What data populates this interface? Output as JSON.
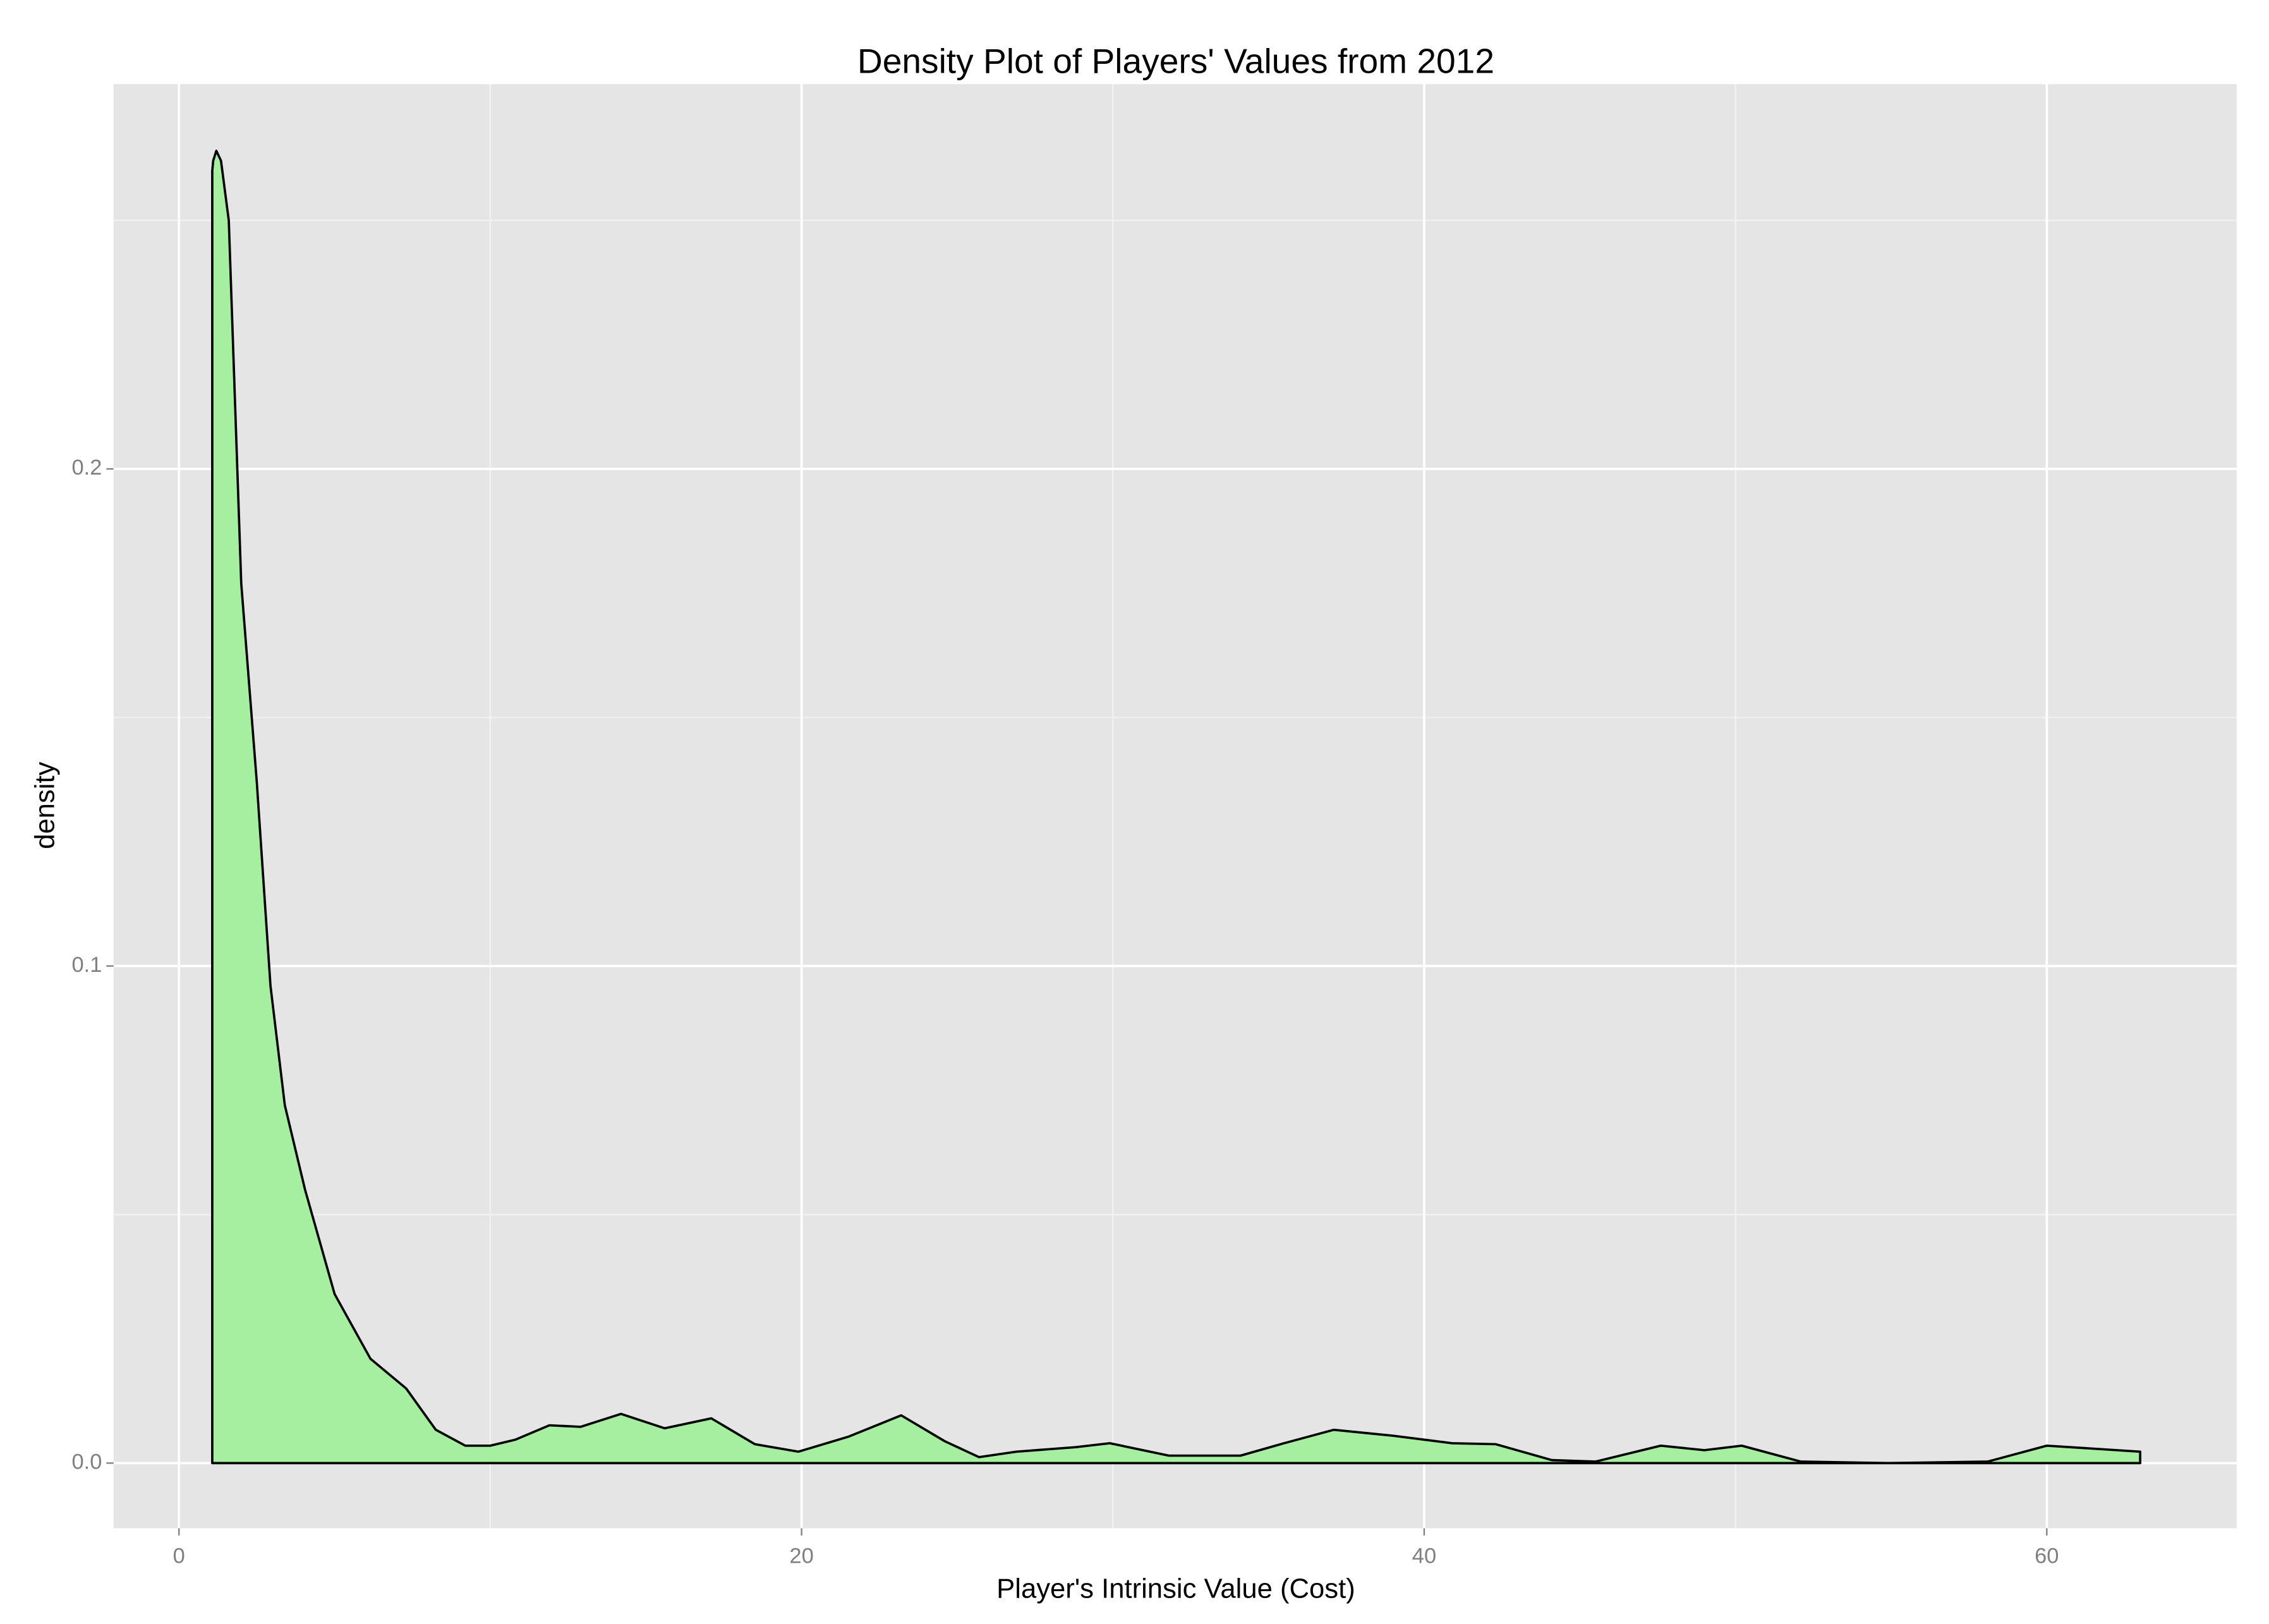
{
  "chart_data": {
    "type": "area",
    "title": "Density Plot of Players' Values from 2012",
    "x_label": "Player's Intrinsic Value (Cost)",
    "y_label": "density",
    "x": [
      1.07,
      1.1,
      1.2,
      1.35,
      1.6,
      2.0,
      2.5,
      2.94,
      3.4,
      4.05,
      5.0,
      6.15,
      7.3,
      8.25,
      9.2,
      10.0,
      10.8,
      11.9,
      12.9,
      14.2,
      15.6,
      17.1,
      18.5,
      19.9,
      21.5,
      23.2,
      24.6,
      25.7,
      26.9,
      28.8,
      29.9,
      31.8,
      34.1,
      35.5,
      37.1,
      39.0,
      40.9,
      42.3,
      44.1,
      45.5,
      47.6,
      49.0,
      50.2,
      52.1,
      54.9,
      58.1,
      60.0,
      63.0
    ],
    "values": [
      0.26,
      0.262,
      0.264,
      0.262,
      0.25,
      0.177,
      0.137,
      0.096,
      0.072,
      0.055,
      0.034,
      0.021,
      0.015,
      0.0067,
      0.0035,
      0.0035,
      0.0047,
      0.0076,
      0.0073,
      0.0099,
      0.007,
      0.009,
      0.0038,
      0.0023,
      0.0053,
      0.0096,
      0.0044,
      0.0012,
      0.0023,
      0.0032,
      0.004,
      0.0015,
      0.0015,
      0.004,
      0.0067,
      0.0055,
      0.004,
      0.0038,
      0.0006,
      0.0003,
      0.0035,
      0.0026,
      0.0035,
      0.0003,
      0,
      0.0003,
      0.0035,
      0.0023
    ],
    "color": "#a6eea0",
    "xlim": [
      -2.1,
      66.1
    ],
    "ylim": [
      -0.0131,
      0.2774
    ],
    "xticks": [
      0,
      20,
      40,
      60
    ],
    "yticks": [
      {
        "value": 0,
        "label": "0.0"
      },
      0.1,
      0.2
    ],
    "grid": true
  }
}
